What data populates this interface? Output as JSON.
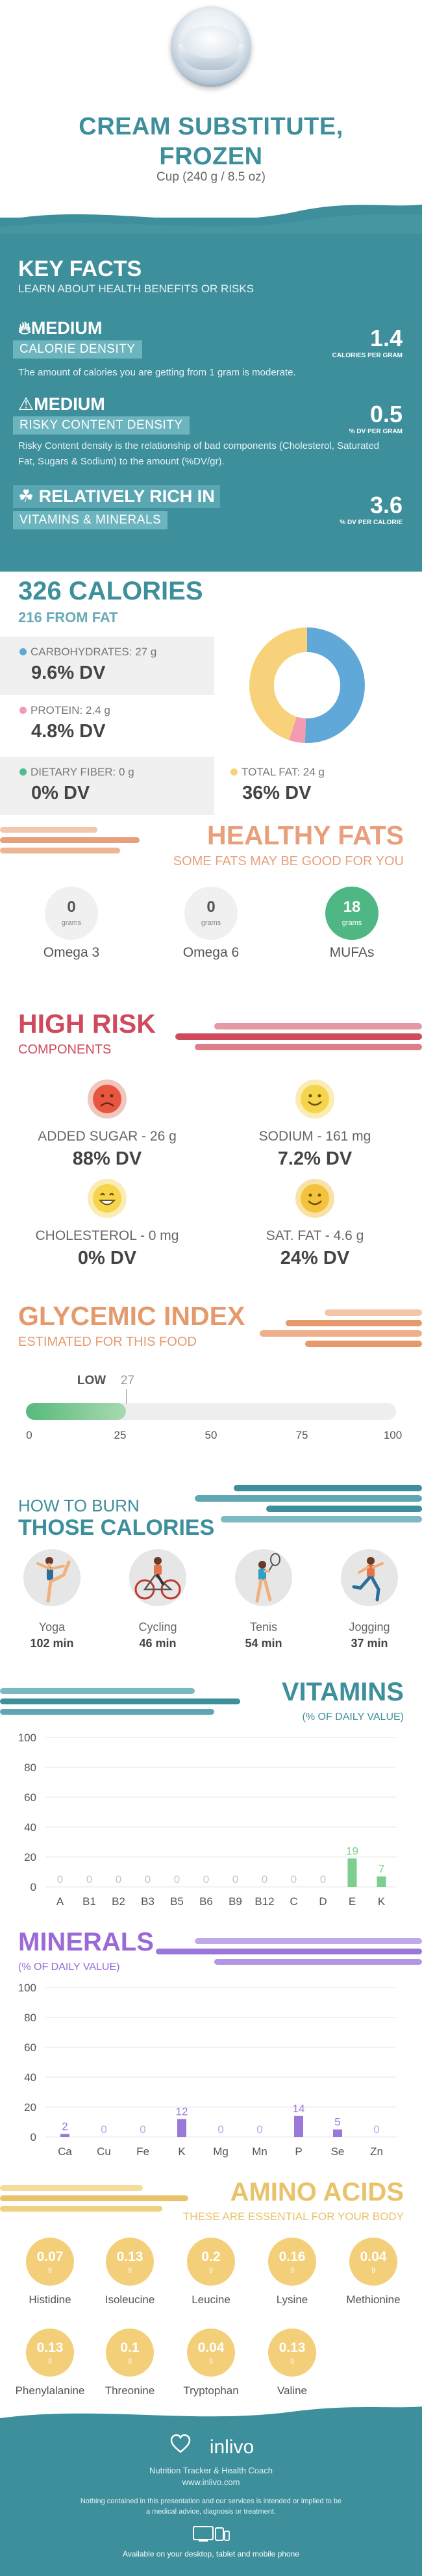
{
  "header": {
    "title_line1": "CREAM SUBSTITUTE,",
    "title_line2": "FROZEN",
    "serving": "Cup (240 g / 8.5 oz)"
  },
  "key_facts": {
    "heading": "KEY FACTS",
    "subheading": "LEARN ABOUT HEALTH BENEFITS OR RISKS",
    "facts": [
      {
        "level": "MEDIUM",
        "label": "CALORIE DENSITY",
        "value": "1.4",
        "unit": "CALORIES PER GRAM",
        "description": "The amount of calories you are getting from 1 gram is moderate."
      },
      {
        "level": "MEDIUM",
        "label": "RISKY CONTENT DENSITY",
        "value": "0.5",
        "unit": "% DV PER GRAM",
        "description": "Risky Content density is the relationship of bad components (Cholesterol, Saturated Fat, Sugars & Sodium) to the amount (%DV/gr)."
      },
      {
        "level": "RELATIVELY RICH  IN",
        "label": "VITAMINS & MINERALS",
        "value": "3.6",
        "unit": "% DV PER CALORIE",
        "description": ""
      }
    ]
  },
  "calories": {
    "heading": "326 CALORIES",
    "from_fat": "216 FROM FAT",
    "macros": [
      {
        "label": "CARBOHYDRATES: 27 g",
        "dv": "9.6% DV",
        "color": "#5fa8d8"
      },
      {
        "label": "PROTEIN: 2.4 g",
        "dv": "4.8% DV",
        "color": "#f29bb3"
      },
      {
        "label": "DIETARY FIBER: 0 g",
        "dv": "0% DV",
        "color": "#4dbd8e"
      },
      {
        "label": "TOTAL FAT: 24 g",
        "dv": "36% DV",
        "color": "#f7d27a"
      }
    ],
    "donut": [
      {
        "name": "carbohydrates",
        "value": 27,
        "color": "#5fa8d8"
      },
      {
        "name": "protein",
        "value": 2.4,
        "color": "#f29bb3"
      },
      {
        "name": "fat",
        "value": 24,
        "color": "#f7d27a"
      }
    ]
  },
  "healthy_fats": {
    "heading": "HEALTHY FATS",
    "subheading": "SOME FATS MAY BE GOOD FOR YOU",
    "unit": "grams",
    "items": [
      {
        "name": "Omega 3",
        "value": "0"
      },
      {
        "name": "Omega 6",
        "value": "0"
      },
      {
        "name": "MUFAs",
        "value": "18"
      }
    ]
  },
  "high_risk": {
    "heading": "HIGH RISK",
    "subheading": "COMPONENTS",
    "items": [
      {
        "label": "ADDED SUGAR - 26 g",
        "dv": "88% DV",
        "face": "sad",
        "color": "#e9553f"
      },
      {
        "label": "SODIUM - 161 mg",
        "dv": "7.2% DV",
        "face": "happy",
        "color": "#f6d54a"
      },
      {
        "label": "CHOLESTEROL - 0 mg",
        "dv": "0% DV",
        "face": "grin",
        "color": "#f6d54a"
      },
      {
        "label": "SAT. FAT - 4.6 g",
        "dv": "24% DV",
        "face": "happy",
        "color": "#f4c33b"
      }
    ]
  },
  "glycemic": {
    "heading": "GLYCEMIC INDEX",
    "subheading": "ESTIMATED FOR THIS FOOD",
    "level": "LOW",
    "value": 27,
    "value_label": "27",
    "ticks": [
      "0",
      "25",
      "50",
      "75",
      "100"
    ]
  },
  "burn": {
    "heading_line1": "HOW TO BURN",
    "heading_line2": "THOSE CALORIES",
    "activities": [
      {
        "name": "Yoga",
        "minutes": "102 min"
      },
      {
        "name": "Cycling",
        "minutes": "46 min"
      },
      {
        "name": "Tenis",
        "minutes": "54 min"
      },
      {
        "name": "Jogging",
        "minutes": "37 min"
      }
    ]
  },
  "vitamins": {
    "heading": "VITAMINS",
    "subheading": "(% OF DAILY VALUE)",
    "chart_data": {
      "type": "bar",
      "categories": [
        "A",
        "B1",
        "B2",
        "B3",
        "B5",
        "B6",
        "B9",
        "B12",
        "C",
        "D",
        "E",
        "K"
      ],
      "values": [
        0,
        0,
        0,
        0,
        0,
        0,
        0,
        0,
        0,
        0,
        19,
        7
      ],
      "ylim": [
        0,
        100
      ],
      "yticks": [
        "0",
        "20",
        "40",
        "60",
        "80",
        "100"
      ],
      "bar_color": "#7ccf8e",
      "zero_color": "#c5c5c5"
    }
  },
  "minerals": {
    "heading": "MINERALS",
    "subheading": "(% OF DAILY VALUE)",
    "chart_data": {
      "type": "bar",
      "categories": [
        "Ca",
        "Cu",
        "Fe",
        "K",
        "Mg",
        "Mn",
        "P",
        "Se",
        "Zn"
      ],
      "values": [
        2,
        0,
        0,
        12,
        0,
        0,
        14,
        5,
        0
      ],
      "ylim": [
        0,
        100
      ],
      "yticks": [
        "0",
        "20",
        "40",
        "60",
        "80",
        "100"
      ],
      "bar_color": "#9a78d8",
      "zero_color": "#b9a6e2"
    }
  },
  "amino": {
    "heading": "AMINO ACIDS",
    "subheading": "THESE ARE ESSENTIAL FOR YOUR BODY",
    "unit": "g",
    "items": [
      {
        "name": "Histidine",
        "value": "0.07"
      },
      {
        "name": "Isoleucine",
        "value": "0.13"
      },
      {
        "name": "Leucine",
        "value": "0.2"
      },
      {
        "name": "Lysine",
        "value": "0.16"
      },
      {
        "name": "Methionine",
        "value": "0.04"
      },
      {
        "name": "Phenylalanine",
        "value": "0.13"
      },
      {
        "name": "Threonine",
        "value": "0.1"
      },
      {
        "name": "Tryptophan",
        "value": "0.04"
      },
      {
        "name": "Valine",
        "value": "0.13"
      }
    ]
  },
  "footer": {
    "brand": "inlivo",
    "tagline": "Nutrition Tracker & Health Coach",
    "url": "www.inlivo.com",
    "disclaimer": "Nothing contained in this presentation and our services is intended or implied to be a medical advice, diagnosis or treatment.",
    "available": "Available on your desktop, tablet and mobile phone"
  }
}
